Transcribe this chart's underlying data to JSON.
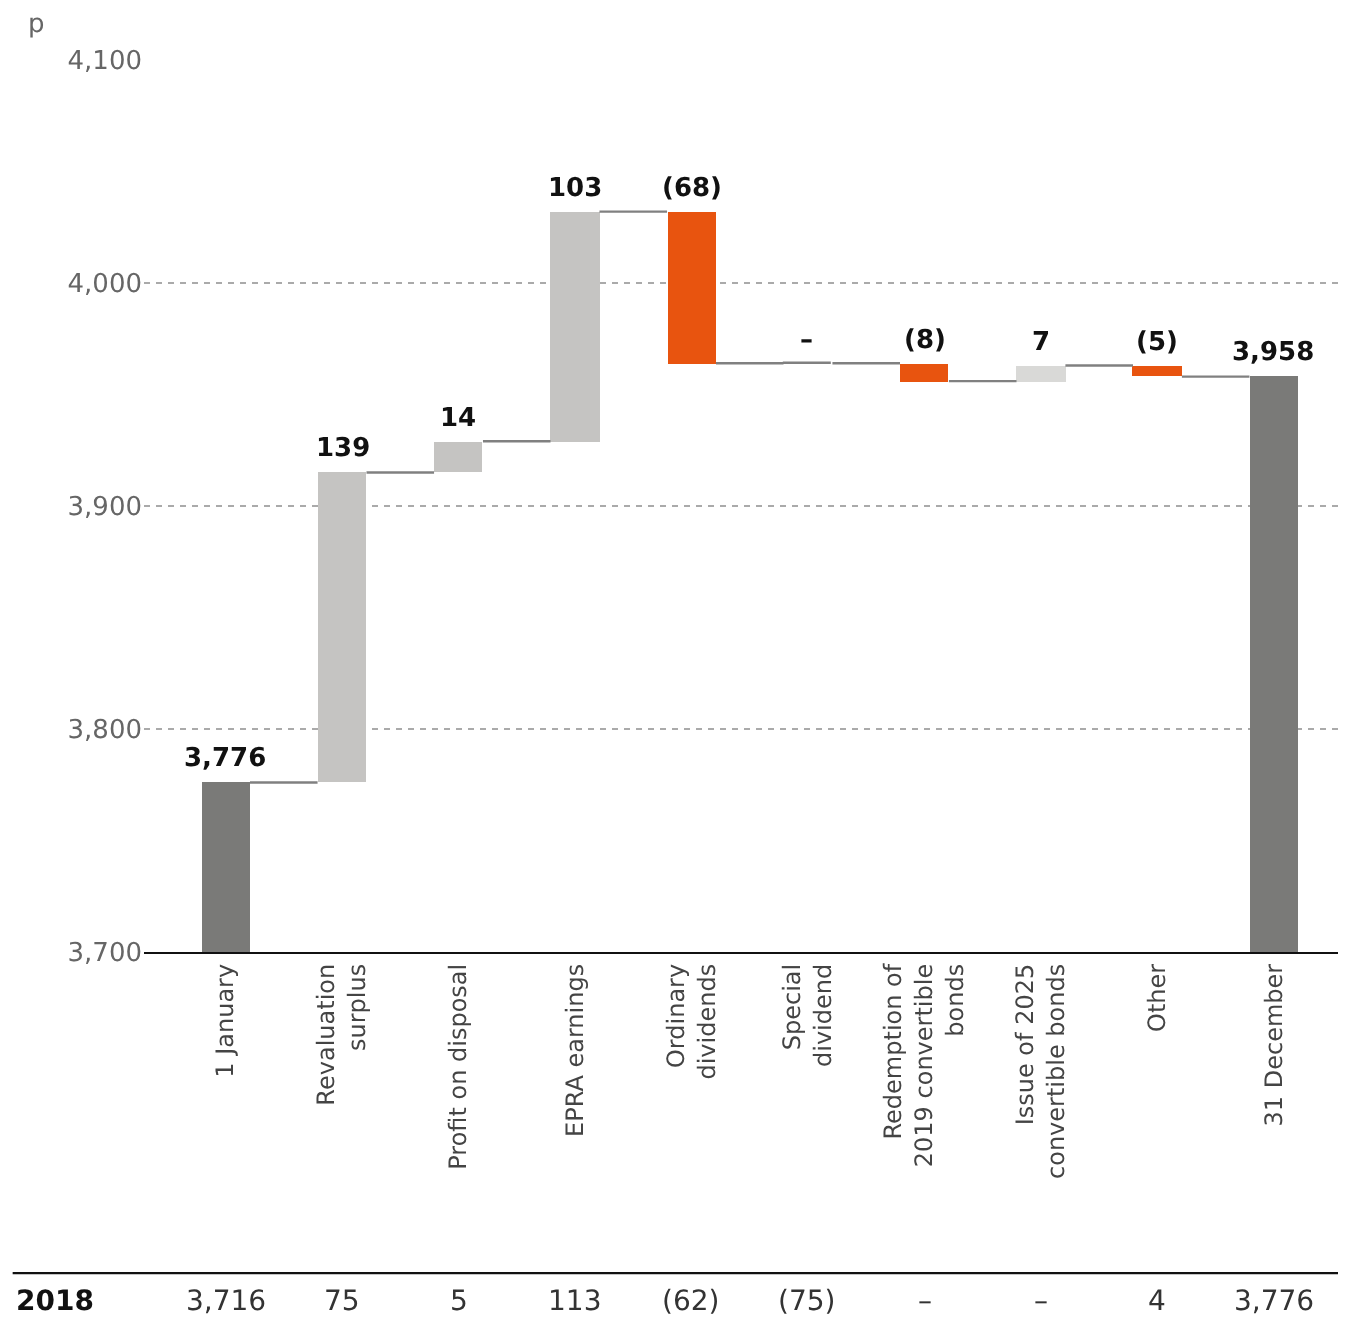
{
  "chart_data": {
    "type": "bar",
    "ylabel": "p",
    "categories": [
      "1 January",
      "Revaluation\nsurplus",
      "Profit on disposal",
      "EPRA earnings",
      "Ordinary\ndividends",
      "Special\ndividend",
      "Redemption of\n2019 convertible\nbonds",
      "Issue of 2025\nconvertible bonds",
      "Other",
      "31 December"
    ],
    "values": [
      76,
      139,
      14,
      103,
      -68,
      0,
      -8,
      7,
      -5,
      258
    ],
    "base": [
      3700,
      3776,
      3915,
      3929,
      4032,
      3964,
      3964,
      3956,
      3963,
      3700
    ],
    "colors": [
      "#7a7a78",
      "#c5c4c2",
      "#c5c4c2",
      "#c5c4c2",
      "#e8540f",
      "#808080",
      "#e8540f",
      "#d9d9d7",
      "#e8540f",
      "#7a7a78"
    ],
    "value_labels": [
      "3,776",
      "139",
      "14",
      "103",
      "(68)",
      "–",
      "(8)",
      "7",
      "(5)",
      "3,958"
    ],
    "ylim": [
      3700,
      4100
    ],
    "yticks": [
      {
        "value": 3700,
        "label": "3,700"
      },
      {
        "value": 3800,
        "label": "3,800"
      },
      {
        "value": 3900,
        "label": "3,900"
      },
      {
        "value": 4000,
        "label": "4,000"
      },
      {
        "value": 4100,
        "label": "4,100"
      }
    ],
    "grid": "y",
    "annotations": [
      "2018",
      "3,716",
      "75",
      "5",
      "113",
      "(62)",
      "(75)",
      "–",
      "–",
      "4",
      "3,776"
    ]
  }
}
